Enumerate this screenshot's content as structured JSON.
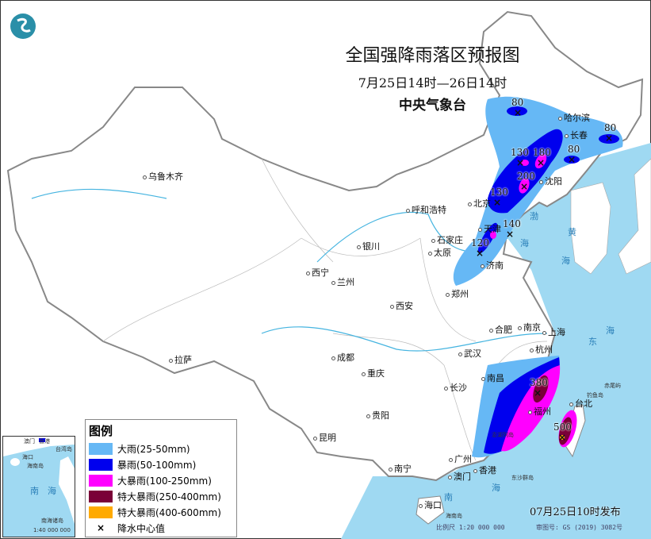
{
  "header": {
    "title": "全国强降雨落区预报图",
    "time_range": "7月25日14时—26日14时",
    "issuer": "中央气象台",
    "logo_icon": "cma-logo"
  },
  "colors": {
    "heavy_rain": "#66b8f5",
    "rainstorm": "#0000ee",
    "heavy_rainstorm": "#ff00ff",
    "severe_rainstorm_250_400": "#7a0038",
    "severe_rainstorm_400_600": "#ffaa00",
    "sea": "#9fd9f2"
  },
  "legend": {
    "title": "图例",
    "items": [
      {
        "label": "大雨(25-50mm)",
        "color": "#66b8f5"
      },
      {
        "label": "暴雨(50-100mm)",
        "color": "#0000ee"
      },
      {
        "label": "大暴雨(100-250mm)",
        "color": "#ff00ff"
      },
      {
        "label": "特大暴雨(250-400mm)",
        "color": "#7a0038"
      },
      {
        "label": "特大暴雨(400-600mm)",
        "color": "#ffaa00"
      },
      {
        "label": "降水中心值",
        "symbol": "×"
      }
    ]
  },
  "cities": [
    "乌鲁木齐",
    "呼和浩特",
    "银川",
    "西宁",
    "兰州",
    "西安",
    "郑州",
    "太原",
    "石家庄",
    "北京",
    "天津",
    "济南",
    "哈尔滨",
    "长春",
    "沈阳",
    "拉萨",
    "成都",
    "重庆",
    "贵阳",
    "昆明",
    "南宁",
    "广州",
    "澳门",
    "香港",
    "海口",
    "长沙",
    "武汉",
    "南昌",
    "合肥",
    "南京",
    "上海",
    "杭州",
    "福州",
    "台北"
  ],
  "islands": [
    "海南岛",
    "东沙群岛",
    "澎湖列岛",
    "钓鱼岛",
    "赤尾屿"
  ],
  "seas": [
    "渤",
    "海",
    "黄",
    "海",
    "东",
    "海",
    "南",
    "海"
  ],
  "rain_centers": [
    {
      "value": "80",
      "unit_mm": 80
    },
    {
      "value": "130",
      "unit_mm": 130
    },
    {
      "value": "180",
      "unit_mm": 180
    },
    {
      "value": "200",
      "unit_mm": 200
    },
    {
      "value": "130",
      "unit_mm": 130
    },
    {
      "value": "140",
      "unit_mm": 140
    },
    {
      "value": "120",
      "unit_mm": 120
    },
    {
      "value": "80",
      "unit_mm": 80
    },
    {
      "value": "80",
      "unit_mm": 80
    },
    {
      "value": "380",
      "unit_mm": 380
    },
    {
      "value": "500",
      "unit_mm": 500
    }
  ],
  "inset": {
    "labels": [
      "澳门",
      "香港",
      "台湾岛",
      "海口",
      "海南岛",
      "南",
      "海",
      "南海诸岛"
    ],
    "scale": "1:40 000 000"
  },
  "footer": {
    "published": "07月25日10时发布",
    "scale": "比例尺 1:20 000 000",
    "approval": "审图号: GS (2019) 3082号"
  }
}
